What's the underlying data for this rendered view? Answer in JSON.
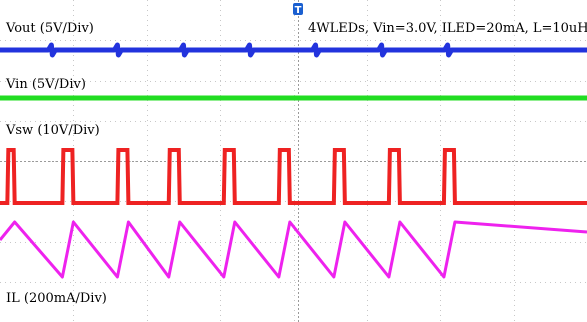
{
  "chart_data": {
    "type": "line",
    "title": "",
    "annotation": "4WLEDs, Vin=3.0V, ILED=20mA, L=10uH",
    "trigger_marker": "T",
    "grid": true,
    "legend": "none",
    "channels": [
      {
        "name": "Vout",
        "label": "Vout (5V/Div)",
        "scale": "5V/Div",
        "color": "#2233dd",
        "waveform": "dc-with-ripple",
        "pulses_t": [
          0.7,
          1.6,
          2.5,
          3.4,
          4.3,
          5.2,
          6.1
        ]
      },
      {
        "name": "Vin",
        "label": "Vin (5V/Div)",
        "scale": "5V/Div",
        "color": "#22dd22",
        "waveform": "dc"
      },
      {
        "name": "Vsw",
        "label": "Vsw (10V/Div)",
        "scale": "10V/Div",
        "color": "#ee2222",
        "waveform": "pulse",
        "high_intervals_t": [
          [
            0.1,
            0.2
          ],
          [
            0.85,
            1.0
          ],
          [
            1.6,
            1.75
          ],
          [
            2.3,
            2.45
          ],
          [
            3.05,
            3.2
          ],
          [
            3.8,
            3.95
          ],
          [
            4.55,
            4.7
          ],
          [
            5.3,
            5.45
          ],
          [
            6.05,
            6.2
          ]
        ]
      },
      {
        "name": "IL",
        "label": "IL (200mA/Div)",
        "scale": "200mA/Div",
        "color": "#ee22ee",
        "waveform": "sawtooth",
        "peaks_t": [
          0.2,
          1.0,
          1.75,
          2.45,
          3.2,
          3.95,
          4.7,
          5.45,
          6.2
        ],
        "valleys_t": [
          0.85,
          1.6,
          2.3,
          3.05,
          3.8,
          4.55,
          5.3,
          6.05
        ]
      }
    ]
  }
}
